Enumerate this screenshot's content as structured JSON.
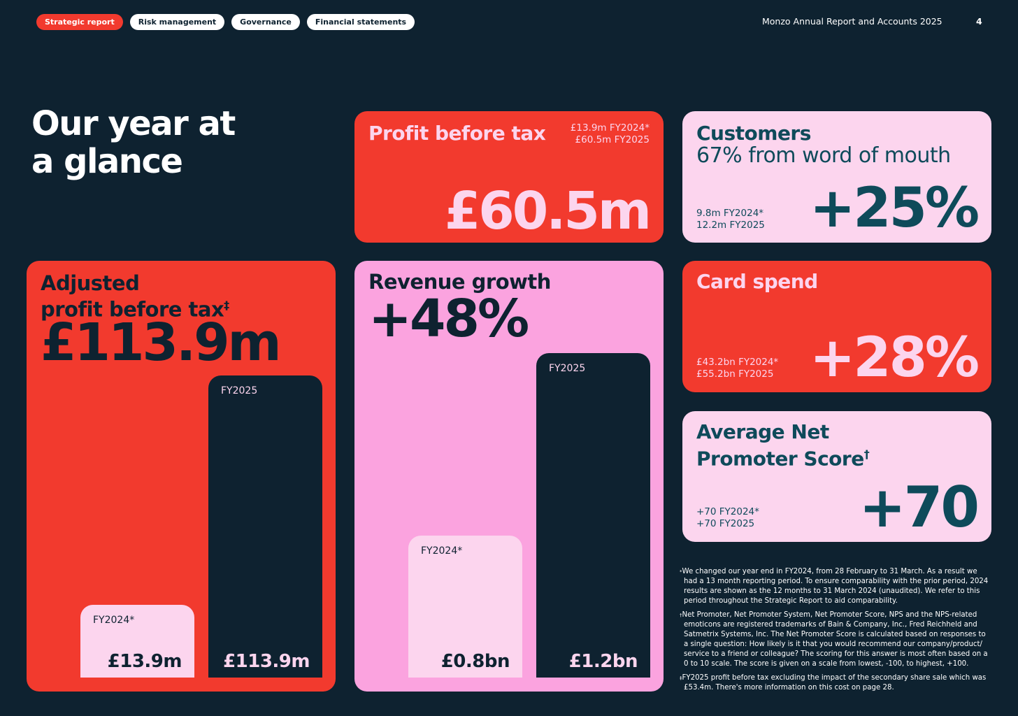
{
  "nav": {
    "tabs": [
      "Strategic report",
      "Risk management",
      "Governance",
      "Financial statements"
    ],
    "doc_title": "Monzo Annual Report and Accounts 2025",
    "page_number": "4"
  },
  "heading": {
    "line1": "Our year at",
    "line2": "a glance"
  },
  "profit_before_tax": {
    "title": "Profit before tax",
    "fy2024": "£13.9m FY2024*",
    "fy2025": "£60.5m FY2025",
    "value": "£60.5m"
  },
  "customers": {
    "title": "Customers",
    "subtitle": "67% from word of mouth",
    "fy2024": "9.8m FY2024*",
    "fy2025": "12.2m FY2025",
    "value": "+25%"
  },
  "card_spend": {
    "title": "Card spend",
    "fy2024": "£43.2bn FY2024*",
    "fy2025": "£55.2bn FY2025",
    "value": "+28%"
  },
  "nps": {
    "title_line1": "Average Net",
    "title_line2": "Promoter Score",
    "title_mark": "†",
    "fy2024": "+70 FY2024*",
    "fy2025": "+70 FY2025",
    "value": "+70"
  },
  "adjusted_pbt": {
    "title_line1": "Adjusted",
    "title_line2": "profit before tax",
    "title_mark": "‡",
    "value": "£113.9m"
  },
  "revenue_growth": {
    "title": "Revenue growth",
    "value": "+48%"
  },
  "chart_data": [
    {
      "type": "bar",
      "title": "Adjusted profit before tax",
      "categories": [
        "FY2024*",
        "FY2025"
      ],
      "values": [
        13.9,
        113.9
      ],
      "value_labels": [
        "£13.9m",
        "£113.9m"
      ],
      "unit": "£m"
    },
    {
      "type": "bar",
      "title": "Revenue growth",
      "categories": [
        "FY2024*",
        "FY2025"
      ],
      "values": [
        0.8,
        1.2
      ],
      "value_labels": [
        "£0.8bn",
        "£1.2bn"
      ],
      "unit": "£bn"
    }
  ],
  "footnotes": [
    {
      "mark": "*",
      "text": "We changed our year end in FY2024, from 28 February to 31 March. As a result we had a 13 month reporting period. To ensure comparability with the prior period, 2024 results are shown as the 12 months to 31 March 2024 (unaudited). We refer to this period throughout the Strategic Report to aid comparability."
    },
    {
      "mark": "†",
      "text": "Net Promoter, Net Promoter System, Net Promoter Score, NPS and the NPS-related emoticons are registered trademarks of Bain & Company, Inc., Fred Reichheld and Satmetrix Systems, Inc. The Net Promoter Score is calculated based on responses to a single question: How likely is it that you would recommend our company/product/ service to a friend or colleague? The scoring for this answer is most often based on a 0 to 10 scale. The score is given on a scale from lowest, -100, to highest, +100."
    },
    {
      "mark": "‡",
      "text": "FY2025 profit before tax excluding the impact of the secondary share sale which was £53.4m. There's more information on this cost on page 28."
    }
  ],
  "colors": {
    "background": "#0e2230",
    "red": "#f23a2e",
    "light_pink": "#fcd5ee",
    "pink": "#fba3df",
    "teal": "#0e4a5a"
  }
}
